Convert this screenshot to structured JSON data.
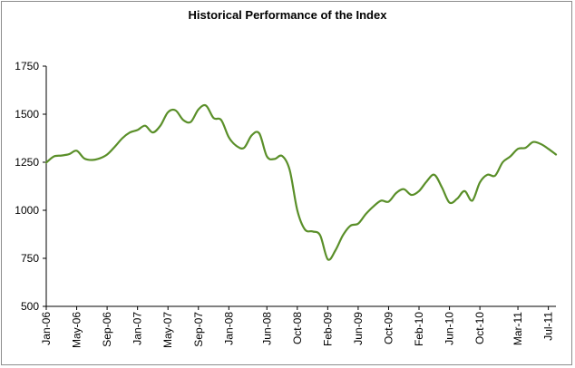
{
  "chart_data": {
    "type": "line",
    "title": "Historical Performance of the Index",
    "xlabel": "",
    "ylabel": "",
    "ylim": [
      500,
      1750
    ],
    "yticks": [
      500,
      750,
      1000,
      1250,
      1500,
      1750
    ],
    "ytick_labels": [
      "500",
      "750",
      "1000",
      "1250",
      "1500",
      "1750"
    ],
    "xtick_labels": [
      "Jan-06",
      "May-06",
      "Sep-06",
      "Jan-07",
      "May-07",
      "Sep-07",
      "Jan-08",
      "Jun-08",
      "Oct-08",
      "Feb-09",
      "Jun-09",
      "Oct-09",
      "Feb-10",
      "Jun-10",
      "Oct-10",
      "Mar-11",
      "Jul-11"
    ],
    "xtick_dates": [
      "2006-01",
      "2006-05",
      "2006-09",
      "2007-01",
      "2007-05",
      "2007-09",
      "2008-01",
      "2008-06",
      "2008-10",
      "2009-02",
      "2009-06",
      "2009-10",
      "2010-02",
      "2010-06",
      "2010-10",
      "2011-03",
      "2011-07"
    ],
    "grid": false,
    "legend": "none",
    "line_color": "#5a8f29",
    "series": [
      {
        "x": [
          "2006-01",
          "2006-02",
          "2006-03",
          "2006-04",
          "2006-05",
          "2006-06",
          "2006-07",
          "2006-08",
          "2006-09",
          "2006-10",
          "2006-11",
          "2006-12",
          "2007-01",
          "2007-02",
          "2007-03",
          "2007-04",
          "2007-05",
          "2007-06",
          "2007-07",
          "2007-08",
          "2007-09",
          "2007-10",
          "2007-11",
          "2007-12",
          "2008-01",
          "2008-02",
          "2008-03",
          "2008-04",
          "2008-05",
          "2008-06",
          "2008-07",
          "2008-08",
          "2008-09",
          "2008-10",
          "2008-11",
          "2008-12",
          "2009-01",
          "2009-02",
          "2009-03",
          "2009-04",
          "2009-05",
          "2009-06",
          "2009-07",
          "2009-08",
          "2009-09",
          "2009-10",
          "2009-11",
          "2009-12",
          "2010-01",
          "2010-02",
          "2010-03",
          "2010-04",
          "2010-05",
          "2010-06",
          "2010-07",
          "2010-08",
          "2010-09",
          "2010-10",
          "2010-11",
          "2010-12",
          "2011-01",
          "2011-02",
          "2011-03",
          "2011-04",
          "2011-05",
          "2011-06",
          "2011-07",
          "2011-08"
        ],
        "values": [
          1248,
          1280,
          1285,
          1292,
          1310,
          1270,
          1262,
          1270,
          1290,
          1330,
          1375,
          1405,
          1418,
          1440,
          1405,
          1440,
          1510,
          1520,
          1470,
          1460,
          1525,
          1545,
          1480,
          1470,
          1380,
          1335,
          1325,
          1390,
          1400,
          1280,
          1267,
          1283,
          1210,
          1000,
          900,
          890,
          870,
          745,
          790,
          870,
          920,
          930,
          980,
          1020,
          1050,
          1045,
          1090,
          1110,
          1080,
          1100,
          1150,
          1185,
          1120,
          1040,
          1060,
          1100,
          1050,
          1145,
          1185,
          1180,
          1250,
          1280,
          1320,
          1325,
          1355,
          1345,
          1320,
          1290
        ]
      }
    ]
  }
}
